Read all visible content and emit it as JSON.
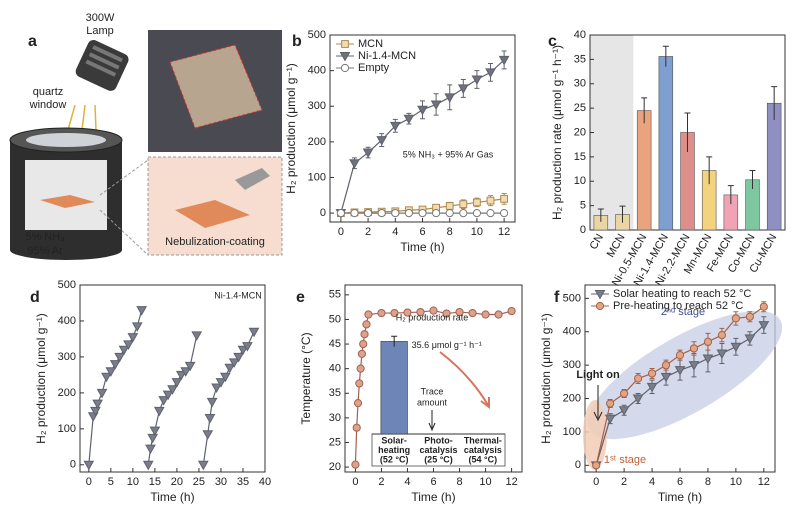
{
  "illustration": {
    "label": "a",
    "lamp_lines": [
      "300W",
      "Lamp"
    ],
    "window_lines": [
      "quartz",
      "window"
    ],
    "gas_lines": [
      "5% NH₃",
      "95% Ar"
    ],
    "coating": "Nebulization-coating"
  },
  "chart_data": [
    {
      "label": "b",
      "type": "line",
      "xlabel": "Time (h)",
      "ylabel": "H₂ production (μmol g⁻¹)",
      "x": [
        0,
        1,
        2,
        3,
        4,
        5,
        6,
        7,
        8,
        9,
        10,
        11,
        12
      ],
      "xlim": [
        -0.8,
        12.8
      ],
      "xticks": [
        0,
        2,
        4,
        6,
        8,
        10,
        12
      ],
      "ylim": [
        -25,
        500
      ],
      "yticks": [
        0,
        100,
        200,
        300,
        400,
        500
      ],
      "legend": "upper left",
      "annotation": "5% NH₃ + 95% Ar Gas",
      "series": [
        {
          "name": "MCN",
          "color": "#b0894f",
          "fill": "#f0dcb0",
          "marker": "square",
          "values": [
            0,
            2,
            3,
            4,
            5,
            8,
            10,
            15,
            20,
            25,
            30,
            35,
            40
          ],
          "errors": [
            0,
            2,
            3,
            3,
            5,
            5,
            8,
            8,
            10,
            12,
            12,
            14,
            15
          ]
        },
        {
          "name": "Ni-1.4-MCN",
          "color": "#5f626c",
          "fill": "#6f727c",
          "marker": "triangle",
          "values": [
            0,
            140,
            170,
            205,
            245,
            265,
            290,
            305,
            325,
            350,
            375,
            395,
            430
          ],
          "errors": [
            0,
            15,
            15,
            18,
            18,
            15,
            25,
            30,
            35,
            25,
            25,
            25,
            25
          ]
        },
        {
          "name": "Empty",
          "color": "#777",
          "fill": "#fff",
          "marker": "circle",
          "values": [
            0,
            0,
            0,
            0,
            0,
            0,
            0,
            0,
            0,
            0,
            0,
            0,
            0
          ]
        }
      ]
    },
    {
      "label": "c",
      "type": "bar",
      "ylabel": "H₂ production rate (μmol g⁻¹ h⁻¹)",
      "categories": [
        "CN",
        "MCN",
        "Ni-0.5-MCN",
        "Ni-1.4-MCN",
        "Ni-2.2-MCN",
        "Mn-MCN",
        "Fe-MCN",
        "Co-MCN",
        "Cu-MCN"
      ],
      "values": [
        3,
        3.2,
        24.5,
        35.6,
        20,
        12.2,
        7.2,
        10.3,
        26
      ],
      "errors": [
        1.3,
        1.7,
        2.6,
        2.1,
        4,
        2.8,
        1.9,
        1.9,
        3.4
      ],
      "colors": [
        "#ead6a4",
        "#ead6a4",
        "#e9a37e",
        "#7f9fd0",
        "#de8f8c",
        "#f3d37d",
        "#f0a3b5",
        "#7fc7a0",
        "#8f8fc2"
      ],
      "ylim": [
        0,
        40
      ],
      "yticks": [
        0,
        5,
        10,
        15,
        20,
        25,
        30,
        35,
        40
      ]
    },
    {
      "label": "d",
      "type": "line",
      "xlabel": "Time (h)",
      "ylabel": "H₂ production (μmol g⁻¹)",
      "xlim": [
        -2,
        40
      ],
      "xticks": [
        0,
        5,
        10,
        15,
        20,
        25,
        30,
        35,
        40
      ],
      "ylim": [
        -20,
        500
      ],
      "yticks": [
        0,
        100,
        200,
        300,
        400,
        500
      ],
      "annotation": "Ni-1.4-MCN",
      "series": [
        {
          "color": "#5f626c",
          "fill": "#7a7e8c",
          "marker": "triangle",
          "x": [
            0,
            1,
            1.5,
            2,
            3,
            4,
            5,
            6,
            7,
            8,
            9,
            10,
            11,
            12
          ],
          "values": [
            0,
            135,
            150,
            170,
            200,
            245,
            260,
            280,
            300,
            320,
            335,
            355,
            385,
            430
          ]
        },
        {
          "color": "#5f626c",
          "fill": "#7a7e8c",
          "marker": "triangle",
          "x": [
            13.5,
            14,
            14.5,
            15,
            16,
            17,
            18,
            19,
            20,
            21,
            22,
            23,
            24.5
          ],
          "values": [
            0,
            45,
            75,
            95,
            150,
            180,
            195,
            210,
            230,
            250,
            260,
            275,
            360
          ]
        },
        {
          "color": "#5f626c",
          "fill": "#7a7e8c",
          "marker": "triangle",
          "x": [
            26,
            27,
            27.5,
            28,
            29,
            30,
            31,
            32,
            33,
            34,
            35,
            36,
            37.5
          ],
          "values": [
            0,
            85,
            130,
            175,
            215,
            230,
            245,
            270,
            285,
            300,
            320,
            330,
            370
          ]
        }
      ]
    },
    {
      "label": "e",
      "type": "line",
      "xlabel": "Time (h)",
      "ylabel": "Temperature (°C)",
      "xlim": [
        -0.8,
        12.8
      ],
      "xticks": [
        0,
        2,
        4,
        6,
        8,
        10,
        12
      ],
      "ylim": [
        19,
        57
      ],
      "yticks": [
        20,
        25,
        30,
        35,
        40,
        45,
        50,
        55
      ],
      "x": [
        0,
        0.1,
        0.2,
        0.3,
        0.4,
        0.5,
        0.6,
        0.7,
        0.85,
        1,
        2,
        3,
        4,
        5,
        6,
        7,
        8,
        9,
        10,
        11,
        12
      ],
      "series": [
        {
          "color": "#a5604a",
          "fill": "#dba38f",
          "marker": "circle",
          "values": [
            20.5,
            28,
            33,
            37,
            40,
            43,
            45,
            47,
            49,
            51,
            51.3,
            51.3,
            51.4,
            51.5,
            51.8,
            51.2,
            51.5,
            51.3,
            51,
            51,
            51.7
          ]
        }
      ],
      "inset": {
        "type": "bar",
        "title": "H₂ production rate",
        "color": "#6e85b7",
        "categories": [
          [
            "Solar-",
            "heating",
            "(52 °C)"
          ],
          [
            "Photo-",
            "catalysis",
            "(25 °C)"
          ],
          [
            "Thermal-",
            "catalysis",
            "(54 °C)"
          ]
        ],
        "values": [
          35.6,
          0,
          0
        ],
        "errors": [
          2,
          0,
          0
        ],
        "value_labels": [
          "35.6 μmol g⁻¹ h⁻¹",
          null,
          null
        ],
        "ylim": [
          0,
          40
        ],
        "annotation_lines": [
          "Trace",
          "amount"
        ]
      }
    },
    {
      "label": "f",
      "type": "line",
      "xlabel": "Time (h)",
      "ylabel": "H₂ production (μmol g⁻¹)",
      "x": [
        0,
        1,
        2,
        3,
        4,
        5,
        6,
        7,
        8,
        9,
        10,
        11,
        12
      ],
      "xlim": [
        -0.8,
        12.8
      ],
      "xticks": [
        0,
        2,
        4,
        6,
        8,
        10,
        12
      ],
      "ylim": [
        -20,
        540
      ],
      "yticks": [
        0,
        100,
        200,
        300,
        400,
        500
      ],
      "legend": "upper left",
      "annotations": [
        "Light on",
        "2ⁿᵈ stage",
        "1ˢᵗ stage"
      ],
      "series": [
        {
          "name": "Solar heating to reach 52 °C",
          "color": "#5f626c",
          "fill": "#7a7e8c",
          "marker": "triangle",
          "values": [
            0,
            140,
            165,
            200,
            235,
            265,
            285,
            300,
            320,
            335,
            355,
            380,
            420
          ],
          "errors": [
            0,
            15,
            15,
            15,
            20,
            25,
            30,
            35,
            40,
            30,
            25,
            20,
            25
          ]
        },
        {
          "name": "Pre-heating to reach 52 °C",
          "color": "#a5604a",
          "fill": "#e2a583",
          "marker": "circle",
          "values": [
            0,
            185,
            215,
            260,
            275,
            300,
            330,
            350,
            370,
            390,
            440,
            445,
            475
          ],
          "errors": [
            0,
            12,
            12,
            15,
            15,
            15,
            15,
            20,
            25,
            20,
            20,
            15,
            15
          ]
        }
      ]
    }
  ]
}
